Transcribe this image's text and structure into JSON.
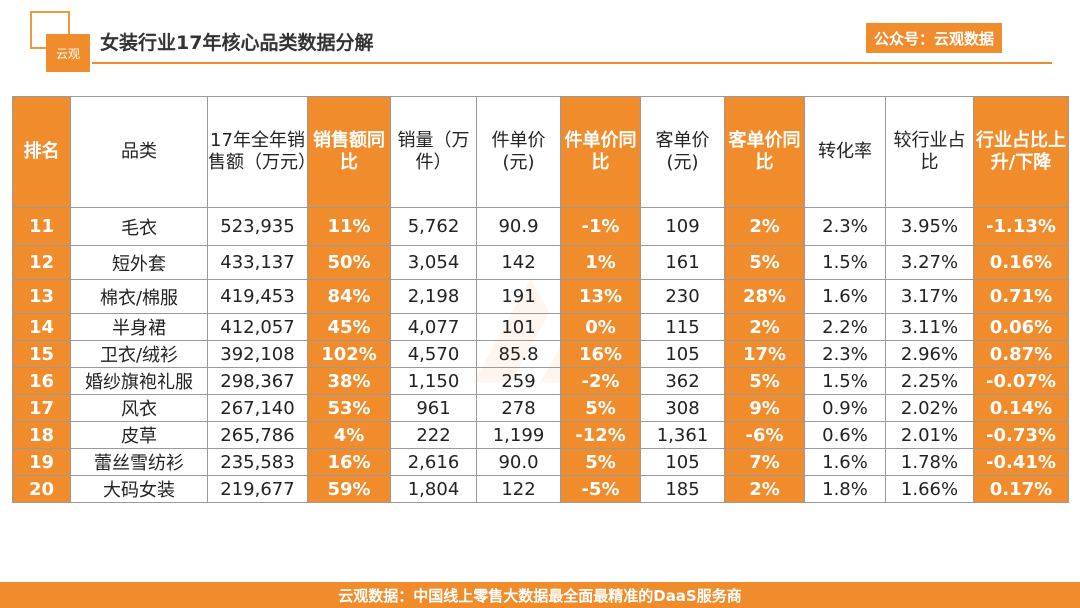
{
  "logo_text": "云观",
  "title": "女装行业17年核心品类数据分解",
  "badge": "公众号：云观数据",
  "headers": [
    "排名",
    "品类",
    "17年全年销售额（万元）",
    "销售额同比",
    "销量（万件）",
    "件单价(元)",
    "件单价同比",
    "客单价(元)",
    "客单价同比",
    "转化率",
    "较行业占比",
    "行业占比上升/下降"
  ],
  "highlight_columns": [
    0,
    3,
    6,
    8,
    11
  ],
  "rows": [
    [
      "11",
      "毛衣",
      "523,935",
      "11%",
      "5,762",
      "90.9",
      "-1%",
      "109",
      "2%",
      "2.3%",
      "3.95%",
      "-1.13%"
    ],
    [
      "12",
      "短外套",
      "433,137",
      "50%",
      "3,054",
      "142",
      "1%",
      "161",
      "5%",
      "1.5%",
      "3.27%",
      "0.16%"
    ],
    [
      "13",
      "棉衣/棉服",
      "419,453",
      "84%",
      "2,198",
      "191",
      "13%",
      "230",
      "28%",
      "1.6%",
      "3.17%",
      "0.71%"
    ],
    [
      "14",
      "半身裙",
      "412,057",
      "45%",
      "4,077",
      "101",
      "0%",
      "115",
      "2%",
      "2.2%",
      "3.11%",
      "0.06%"
    ],
    [
      "15",
      "卫衣/绒衫",
      "392,108",
      "102%",
      "4,570",
      "85.8",
      "16%",
      "105",
      "17%",
      "2.3%",
      "2.96%",
      "0.87%"
    ],
    [
      "16",
      "婚纱旗袍礼服",
      "298,367",
      "38%",
      "1,150",
      "259",
      "-2%",
      "362",
      "5%",
      "1.5%",
      "2.25%",
      "-0.07%"
    ],
    [
      "17",
      "风衣",
      "267,140",
      "53%",
      "961",
      "278",
      "5%",
      "308",
      "9%",
      "0.9%",
      "2.02%",
      "0.14%"
    ],
    [
      "18",
      "皮草",
      "265,786",
      "4%",
      "222",
      "1,199",
      "-12%",
      "1,361",
      "-6%",
      "0.6%",
      "2.01%",
      "-0.73%"
    ],
    [
      "19",
      "蕾丝雪纺衫",
      "235,583",
      "16%",
      "2,616",
      "90.0",
      "5%",
      "105",
      "7%",
      "1.6%",
      "1.78%",
      "-0.41%"
    ],
    [
      "20",
      "大码女装",
      "219,677",
      "59%",
      "1,804",
      "122",
      "-5%",
      "185",
      "2%",
      "1.8%",
      "1.66%",
      "0.17%"
    ]
  ],
  "footer": "云观数据：中国线上零售大数据最全面最精准的DaaS服务商",
  "colors": {
    "accent": "#f08c2c",
    "border": "#9a9a9a"
  }
}
